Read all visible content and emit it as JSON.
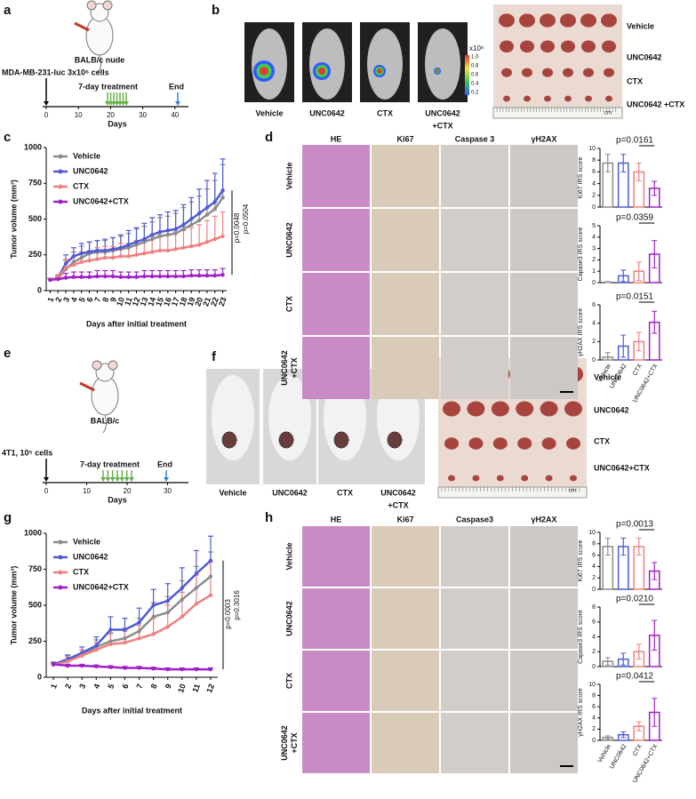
{
  "panel_labels": [
    "a",
    "b",
    "c",
    "d",
    "e",
    "f",
    "g",
    "h"
  ],
  "panel_a": {
    "strain": "BALB/c nude",
    "cells": "MDA-MB-231-luc 3x10⁶ cells",
    "treatment": "7-day treatment",
    "end": "End",
    "ticks": [
      0,
      10,
      20,
      30,
      40
    ],
    "axis_label": "Days"
  },
  "panel_b": {
    "groups": [
      [
        "Vehicle"
      ],
      [
        "UNC0642"
      ],
      [
        "CTX"
      ],
      [
        "UNC0642",
        "+CTX"
      ]
    ],
    "colorbar_unit": "x10⁸",
    "colorbar_ticks": [
      "1.0",
      "0.8",
      "0.6",
      "0.4",
      "0.2"
    ],
    "tumor_rows": [
      "Vehicle",
      "UNC0642",
      "CTX",
      "UNC0642 +CTX"
    ],
    "scale": "cm"
  },
  "panel_d": {
    "columns": [
      "HE",
      "Ki67",
      "Caspase 3",
      "γH2AX"
    ],
    "rows": [
      [
        "Vehicle"
      ],
      [
        "UNC0642"
      ],
      [
        "CTX"
      ],
      [
        "UNC0642",
        "+CTX"
      ]
    ]
  },
  "panel_e": {
    "strain": "BALB/c",
    "cells": "4T1, 10⁵ cells",
    "treatment": "7-day treatment",
    "end": "End",
    "ticks": [
      0,
      10,
      20,
      30
    ],
    "axis_label": "Days"
  },
  "panel_f": {
    "groups": [
      [
        "Vehicle"
      ],
      [
        "UNC0642"
      ],
      [
        "CTX"
      ],
      [
        "UNC0642",
        "+CTX"
      ]
    ],
    "tumor_rows": [
      "Vehicle",
      "UNC0642",
      "CTX",
      "UNC0642+CTX"
    ],
    "scale": "cm"
  },
  "panel_h": {
    "columns": [
      "HE",
      "Ki67",
      "Caspase3",
      "γH2AX"
    ],
    "rows": [
      [
        "Vehicle"
      ],
      [
        "UNC0642"
      ],
      [
        "CTX"
      ],
      [
        "UNC0642",
        "+CTX"
      ]
    ]
  },
  "chart_data": [
    {
      "type": "line",
      "y_label": "Tumor volume (mm³)",
      "x_label": "Days after initial treatment",
      "categories": [
        "1",
        "2",
        "3",
        "4",
        "5",
        "6",
        "7",
        "8",
        "9",
        "10",
        "11",
        "12",
        "13",
        "14",
        "15",
        "16",
        "17",
        "18",
        "19",
        "20",
        "21",
        "22",
        "23"
      ],
      "ylim": [
        0,
        1000
      ],
      "yticks": [
        0,
        250,
        500,
        750,
        1000
      ],
      "annotations": [
        "p=0.0048",
        "p=0.0504"
      ],
      "series": [
        {
          "name": "Vehicle",
          "color": "#8c8c8c",
          "values": [
            75,
            85,
            150,
            200,
            230,
            260,
            270,
            270,
            280,
            290,
            300,
            320,
            340,
            360,
            380,
            390,
            400,
            430,
            460,
            490,
            530,
            570,
            650
          ],
          "errors": [
            10,
            20,
            60,
            70,
            80,
            80,
            80,
            80,
            90,
            90,
            100,
            110,
            110,
            120,
            130,
            130,
            140,
            150,
            160,
            170,
            180,
            200,
            230
          ]
        },
        {
          "name": "UNC0642",
          "color": "#4f5bd5",
          "values": [
            75,
            90,
            190,
            240,
            260,
            270,
            280,
            280,
            290,
            300,
            320,
            340,
            360,
            390,
            410,
            420,
            430,
            460,
            500,
            540,
            580,
            620,
            700
          ],
          "errors": [
            10,
            20,
            60,
            60,
            70,
            70,
            70,
            80,
            80,
            90,
            100,
            100,
            110,
            120,
            120,
            130,
            130,
            140,
            150,
            170,
            190,
            200,
            220
          ]
        },
        {
          "name": "CTX",
          "color": "#f08080",
          "values": [
            75,
            90,
            160,
            180,
            200,
            210,
            220,
            230,
            230,
            240,
            240,
            250,
            260,
            270,
            280,
            280,
            290,
            300,
            310,
            320,
            340,
            360,
            380
          ],
          "errors": [
            10,
            20,
            60,
            60,
            70,
            70,
            80,
            80,
            80,
            90,
            90,
            100,
            100,
            110,
            110,
            110,
            120,
            120,
            130,
            140,
            150,
            160,
            170
          ]
        },
        {
          "name": "UNC0642+CTX",
          "color": "#a020c8",
          "values": [
            75,
            80,
            90,
            95,
            95,
            95,
            100,
            100,
            100,
            95,
            95,
            95,
            100,
            100,
            100,
            100,
            100,
            100,
            105,
            105,
            105,
            105,
            110
          ],
          "errors": [
            10,
            15,
            30,
            35,
            35,
            35,
            40,
            40,
            40,
            35,
            35,
            35,
            40,
            40,
            40,
            40,
            40,
            40,
            40,
            40,
            40,
            40,
            45
          ]
        }
      ]
    },
    {
      "type": "bar",
      "categories": [
        "Vehicle",
        "UNC0642",
        "CTX",
        "UNC0642+CTX"
      ],
      "colors": [
        "#8c8c8c",
        "#4f5bd5",
        "#f08080",
        "#a020c8"
      ],
      "panels": [
        {
          "y_label": "Ki67 IRS score",
          "ylim": [
            0,
            10
          ],
          "yticks": [
            0,
            2,
            4,
            6,
            8,
            10
          ],
          "values": [
            7.5,
            7.5,
            6,
            3.2
          ],
          "errors": [
            1.5,
            1.5,
            1.5,
            1.2
          ],
          "p_value": "p=0.0161"
        },
        {
          "y_label": "Capase3 IRS score",
          "ylim": [
            0,
            5
          ],
          "yticks": [
            0,
            1,
            2,
            3,
            4,
            5
          ],
          "values": [
            0,
            0.6,
            1,
            2.5
          ],
          "errors": [
            0.1,
            0.5,
            0.8,
            1.2
          ],
          "p_value": "p=0.0359"
        },
        {
          "y_label": "γH2AX IRS score",
          "ylim": [
            0,
            6
          ],
          "yticks": [
            0,
            2,
            4,
            6
          ],
          "values": [
            0.3,
            1.5,
            2,
            4.1
          ],
          "errors": [
            0.5,
            1.2,
            1,
            1.2
          ],
          "p_value": "p=0.0151"
        }
      ]
    },
    {
      "type": "line",
      "y_label": "Tumor volume (mm³)",
      "x_label": "Days after initial treatment",
      "categories": [
        "1",
        "2",
        "3",
        "4",
        "5",
        "6",
        "7",
        "8",
        "9",
        "10",
        "11",
        "12"
      ],
      "ylim": [
        0,
        1000
      ],
      "yticks": [
        0,
        250,
        500,
        750,
        1000
      ],
      "annotations": [
        "p=0.0003",
        "p=0.3016"
      ],
      "series": [
        {
          "name": "Vehicle",
          "color": "#8c8c8c",
          "values": [
            90,
            120,
            150,
            210,
            250,
            270,
            320,
            420,
            450,
            540,
            620,
            700
          ],
          "errors": [
            15,
            30,
            40,
            50,
            60,
            70,
            90,
            100,
            110,
            130,
            150,
            170
          ]
        },
        {
          "name": "UNC0642",
          "color": "#4f5bd5",
          "values": [
            90,
            125,
            170,
            220,
            330,
            330,
            380,
            500,
            530,
            620,
            720,
            810
          ],
          "errors": [
            15,
            30,
            40,
            60,
            90,
            80,
            100,
            110,
            120,
            140,
            160,
            170
          ]
        },
        {
          "name": "CTX",
          "color": "#f08080",
          "values": [
            85,
            110,
            150,
            190,
            230,
            240,
            270,
            300,
            350,
            420,
            510,
            570
          ],
          "errors": [
            15,
            30,
            40,
            50,
            70,
            80,
            90,
            110,
            150,
            170,
            200,
            230
          ]
        },
        {
          "name": "UNC0642+CTX",
          "color": "#a020c8",
          "values": [
            90,
            80,
            80,
            75,
            70,
            65,
            65,
            60,
            55,
            55,
            55,
            55
          ],
          "errors": [
            10,
            10,
            10,
            10,
            10,
            10,
            10,
            10,
            10,
            10,
            10,
            10
          ]
        }
      ]
    },
    {
      "type": "bar",
      "categories": [
        "Vehicle",
        "UNC0642",
        "CTX",
        "UNC0642+CTX"
      ],
      "colors": [
        "#8c8c8c",
        "#4f5bd5",
        "#f08080",
        "#a020c8"
      ],
      "panels": [
        {
          "y_label": "Ki67 IRS score",
          "ylim": [
            0,
            10
          ],
          "yticks": [
            0,
            2,
            4,
            6,
            8,
            10
          ],
          "values": [
            7.5,
            7.5,
            7.5,
            3.2
          ],
          "errors": [
            1.5,
            1.5,
            1.5,
            1.5
          ],
          "p_value": "p=0.0013"
        },
        {
          "y_label": "Capase3 IRS score",
          "ylim": [
            0,
            8
          ],
          "yticks": [
            0,
            2,
            4,
            6,
            8
          ],
          "values": [
            0.7,
            1,
            2,
            4.2
          ],
          "errors": [
            0.5,
            0.8,
            1,
            2
          ],
          "p_value": "p=0.0210"
        },
        {
          "y_label": "γH2AX IRS score",
          "ylim": [
            0,
            10
          ],
          "yticks": [
            0,
            2,
            4,
            6,
            8,
            10
          ],
          "values": [
            0.5,
            1,
            2.5,
            5
          ],
          "errors": [
            0.3,
            0.5,
            0.8,
            2.5
          ],
          "p_value": "p=0.0412"
        }
      ]
    }
  ]
}
